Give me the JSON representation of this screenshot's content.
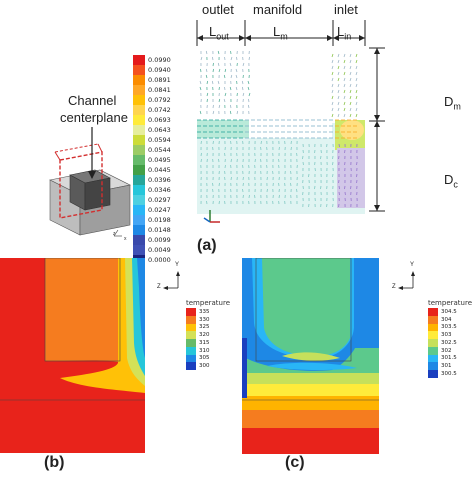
{
  "figure": {
    "panel_a": {
      "label": "(a)",
      "top_labels": {
        "outlet": "outlet",
        "manifold": "manifold",
        "inlet": "inlet"
      },
      "dim_labels": {
        "l_out_base": "L",
        "l_out_sub": "out",
        "l_m_base": "L",
        "l_m_sub": "m",
        "l_in_base": "L",
        "l_in_sub": "in",
        "d_m_base": "D",
        "d_m_sub": "m",
        "d_c_base": "D",
        "d_c_sub": "c"
      },
      "channel_label_line1": "Channel",
      "channel_label_line2": "centerplane",
      "axis_labels": {
        "y": "y",
        "z": "z",
        "x": "x"
      },
      "colorbar_values": [
        "0.0990",
        "0.0940",
        "0.0891",
        "0.0841",
        "0.0792",
        "0.0742",
        "0.0693",
        "0.0643",
        "0.0594",
        "0.0544",
        "0.0495",
        "0.0445",
        "0.0396",
        "0.0346",
        "0.0297",
        "0.0247",
        "0.0198",
        "0.0148",
        "0.0099",
        "0.0049",
        "0.0000"
      ],
      "colorbar_colors": [
        "#e41a1c",
        "#f4511e",
        "#fb8c00",
        "#ffa726",
        "#ffc107",
        "#ffd54f",
        "#ffeb3b",
        "#e6ee9c",
        "#cddc39",
        "#9ccc65",
        "#66bb6a",
        "#43a047",
        "#26a69a",
        "#26c6da",
        "#4dd0e1",
        "#29b6f6",
        "#42a5f5",
        "#1e88e5",
        "#3949ab",
        "#3f51b5",
        "#1a237e"
      ]
    },
    "panel_b": {
      "label": "(b)",
      "legend_title": "temperature",
      "legend_values": [
        "335",
        "330",
        "325",
        "320",
        "315",
        "310",
        "305",
        "300"
      ],
      "legend_colors": [
        "#e8231b",
        "#f57c1f",
        "#ffc107",
        "#d4e157",
        "#66bb6a",
        "#26c6da",
        "#1e88e5",
        "#1a3fbf"
      ],
      "axis_labels": {
        "y": "Y",
        "z": "Z"
      }
    },
    "panel_c": {
      "label": "(c)",
      "legend_title": "temperature",
      "legend_values": [
        "304.5",
        "304",
        "303.5",
        "303",
        "302.5",
        "302",
        "301.5",
        "301",
        "300.5"
      ],
      "legend_colors": [
        "#e8231b",
        "#f57c1f",
        "#ffb300",
        "#ffeb3b",
        "#c6e05b",
        "#5cc98c",
        "#29b6f6",
        "#1e88e5",
        "#1a3fbf"
      ],
      "axis_labels": {
        "y": "Y",
        "z": "Z"
      }
    }
  }
}
